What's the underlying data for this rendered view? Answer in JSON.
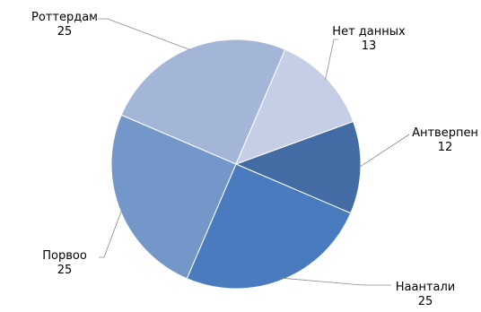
{
  "chart_data": {
    "type": "pie",
    "title": "",
    "slices": [
      {
        "label": "Антверпен",
        "value": 12,
        "value_label": "12",
        "color": "#426ca3"
      },
      {
        "label": "Наантали",
        "value": 25,
        "value_label": "25",
        "color": "#4a7bbe"
      },
      {
        "label": "Порвоо",
        "value": 25,
        "value_label": "25",
        "color": "#7497c9"
      },
      {
        "label": "Роттердам",
        "value": 25,
        "value_label": "25",
        "color": "#a3b6d8"
      },
      {
        "label": "Нет данных",
        "value": 13,
        "value_label": "13",
        "color": "#c4cfe6"
      }
    ],
    "start": "top",
    "direction": "clockwise",
    "legend": "none",
    "labels": "outside-with-leader-lines"
  }
}
